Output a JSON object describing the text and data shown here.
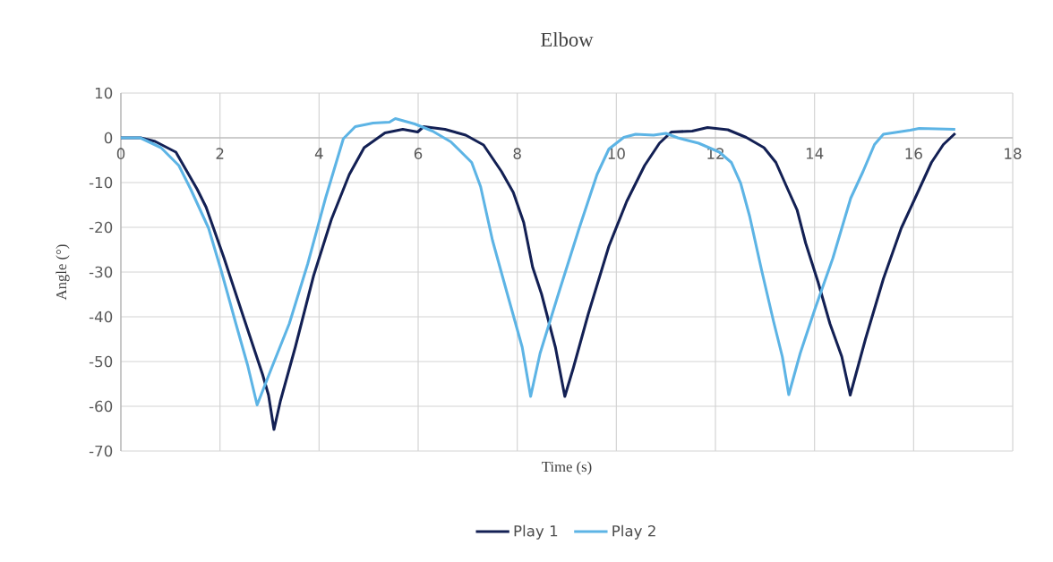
{
  "chart_data": {
    "type": "line",
    "title": "Elbow",
    "xlabel": "Time (s)",
    "ylabel": "Angle (°)",
    "xlim": [
      0,
      18
    ],
    "xticks": [
      0,
      2,
      4,
      6,
      8,
      10,
      12,
      14,
      16,
      18
    ],
    "ylim": [
      -70,
      10
    ],
    "yticks": [
      -70,
      -60,
      -50,
      -40,
      -30,
      -20,
      -10,
      0,
      10
    ],
    "grid": true,
    "legend": "bottom",
    "series": [
      {
        "name": "Play 1",
        "color": "#132054",
        "x": [
          0,
          0.4,
          0.69,
          1.11,
          1.54,
          1.72,
          2.08,
          2.5,
          2.86,
          2.98,
          3.09,
          3.22,
          3.52,
          3.89,
          4.25,
          4.61,
          4.91,
          5.33,
          5.69,
          5.99,
          6.11,
          6.54,
          6.96,
          7.32,
          7.68,
          7.92,
          8.13,
          8.31,
          8.49,
          8.77,
          8.96,
          9.13,
          9.43,
          9.85,
          10.21,
          10.57,
          10.87,
          11.11,
          11.53,
          11.84,
          12.25,
          12.62,
          12.98,
          13.22,
          13.46,
          13.65,
          13.82,
          14.07,
          14.31,
          14.55,
          14.72,
          15.03,
          15.39,
          15.75,
          16.0,
          16.36,
          16.6,
          16.84
        ],
        "values": [
          0,
          0,
          -0.8,
          -3.2,
          -11.5,
          -15.5,
          -26.8,
          -40.9,
          -52.9,
          -57.5,
          -65.2,
          -58.8,
          -46.8,
          -30.8,
          -18.2,
          -8.2,
          -2.2,
          1.1,
          1.9,
          1.3,
          2.5,
          1.9,
          0.6,
          -1.6,
          -7.5,
          -12.2,
          -18.9,
          -28.9,
          -34.9,
          -46.8,
          -57.8,
          -51.5,
          -39.5,
          -24.2,
          -14.2,
          -6.2,
          -1.2,
          1.3,
          1.5,
          2.3,
          1.8,
          0.1,
          -2.2,
          -5.5,
          -11.5,
          -16.2,
          -23.5,
          -32.2,
          -41.5,
          -48.9,
          -57.5,
          -44.9,
          -31.5,
          -20.2,
          -14.2,
          -5.5,
          -1.5,
          1.0
        ]
      },
      {
        "name": "Play 2",
        "color": "#5db4e5",
        "x": [
          0,
          0.39,
          0.81,
          1.17,
          1.41,
          1.77,
          2.02,
          2.32,
          2.56,
          2.75,
          3.04,
          3.4,
          3.77,
          4.13,
          4.49,
          4.73,
          5.09,
          5.42,
          5.54,
          5.93,
          6.29,
          6.66,
          7.08,
          7.26,
          7.5,
          7.8,
          8.1,
          8.27,
          8.46,
          8.83,
          9.25,
          9.61,
          9.85,
          10.15,
          10.39,
          10.75,
          11.0,
          11.24,
          11.66,
          12.08,
          12.32,
          12.51,
          12.69,
          12.93,
          13.17,
          13.35,
          13.48,
          13.71,
          14.01,
          14.37,
          14.73,
          14.98,
          15.21,
          15.39,
          15.93,
          16.11,
          16.84
        ],
        "values": [
          0,
          0,
          -2.2,
          -6.2,
          -11.5,
          -20.2,
          -29.5,
          -41.5,
          -50.9,
          -59.7,
          -51.5,
          -41.5,
          -28.2,
          -13.5,
          -0.2,
          2.5,
          3.3,
          3.5,
          4.3,
          3.1,
          1.5,
          -0.9,
          -5.5,
          -10.9,
          -22.9,
          -34.9,
          -46.8,
          -57.8,
          -48.2,
          -34.9,
          -20.2,
          -8.2,
          -2.5,
          0.1,
          0.8,
          0.6,
          1.0,
          0,
          -1.2,
          -3.2,
          -5.5,
          -10.2,
          -17.5,
          -29.5,
          -40.9,
          -48.9,
          -57.4,
          -48.2,
          -38.2,
          -26.9,
          -13.5,
          -7.5,
          -1.5,
          0.8,
          1.7,
          2.1,
          1.9
        ]
      }
    ]
  }
}
